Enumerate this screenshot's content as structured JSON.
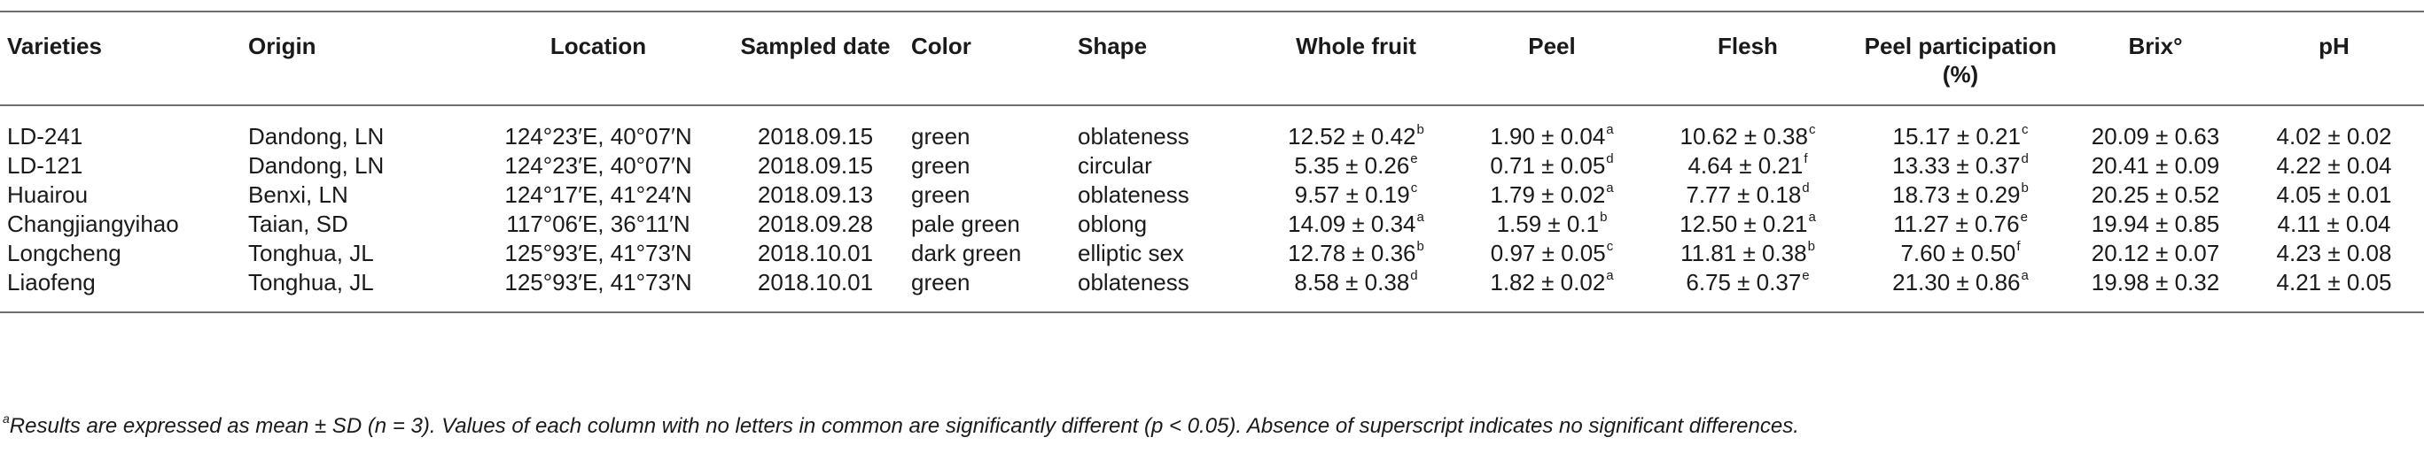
{
  "table": {
    "columns": [
      {
        "key": "variety",
        "label": "Varieties",
        "align": "l"
      },
      {
        "key": "origin",
        "label": "Origin",
        "align": "l"
      },
      {
        "key": "location",
        "label": "Location",
        "align": "c"
      },
      {
        "key": "sampled_date",
        "label": "Sampled date",
        "align": "c"
      },
      {
        "key": "color",
        "label": "Color",
        "align": "l"
      },
      {
        "key": "shape",
        "label": "Shape",
        "align": "l"
      },
      {
        "key": "whole_fruit",
        "label": "Whole fruit",
        "align": "c"
      },
      {
        "key": "peel",
        "label": "Peel",
        "align": "c"
      },
      {
        "key": "flesh",
        "label": "Flesh",
        "align": "c"
      },
      {
        "key": "peel_participation",
        "label": "Peel participation (%)",
        "align": "c"
      },
      {
        "key": "brix",
        "label": "Brix°",
        "align": "c"
      },
      {
        "key": "ph",
        "label": "pH",
        "align": "c"
      }
    ],
    "rows": [
      {
        "variety": "LD-241",
        "origin": "Dandong, LN",
        "location": "124°23′E, 40°07′N",
        "sampled_date": "2018.09.15",
        "color": "green",
        "shape": "oblateness",
        "whole_fruit": {
          "v": "12.52 ± 0.42",
          "s": "b"
        },
        "peel": {
          "v": "1.90 ± 0.04",
          "s": "a"
        },
        "flesh": {
          "v": "10.62 ± 0.38",
          "s": "c"
        },
        "peel_participation": {
          "v": "15.17 ± 0.21",
          "s": "c"
        },
        "brix": "20.09 ± 0.63",
        "ph": "4.02 ± 0.02"
      },
      {
        "variety": "LD-121",
        "origin": "Dandong, LN",
        "location": "124°23′E, 40°07′N",
        "sampled_date": "2018.09.15",
        "color": "green",
        "shape": "circular",
        "whole_fruit": {
          "v": "5.35 ± 0.26",
          "s": "e"
        },
        "peel": {
          "v": "0.71 ± 0.05",
          "s": "d"
        },
        "flesh": {
          "v": "4.64 ± 0.21",
          "s": "f"
        },
        "peel_participation": {
          "v": "13.33 ± 0.37",
          "s": "d"
        },
        "brix": "20.41 ± 0.09",
        "ph": "4.22 ± 0.04"
      },
      {
        "variety": "Huairou",
        "origin": "Benxi, LN",
        "location": "124°17′E, 41°24′N",
        "sampled_date": "2018.09.13",
        "color": "green",
        "shape": "oblateness",
        "whole_fruit": {
          "v": "9.57 ± 0.19",
          "s": "c"
        },
        "peel": {
          "v": "1.79 ± 0.02",
          "s": "a"
        },
        "flesh": {
          "v": "7.77 ± 0.18",
          "s": "d"
        },
        "peel_participation": {
          "v": "18.73 ± 0.29",
          "s": "b"
        },
        "brix": "20.25 ± 0.52",
        "ph": "4.05 ± 0.01"
      },
      {
        "variety": "Changjiangyihao",
        "origin": "Taian, SD",
        "location": "117°06′E, 36°11′N",
        "sampled_date": "2018.09.28",
        "color": "pale green",
        "shape": "oblong",
        "whole_fruit": {
          "v": "14.09 ± 0.34",
          "s": "a"
        },
        "peel": {
          "v": "1.59 ± 0.1",
          "s": "b"
        },
        "flesh": {
          "v": "12.50 ± 0.21",
          "s": "a"
        },
        "peel_participation": {
          "v": "11.27 ± 0.76",
          "s": "e"
        },
        "brix": "19.94 ± 0.85",
        "ph": "4.11 ± 0.04"
      },
      {
        "variety": "Longcheng",
        "origin": "Tonghua, JL",
        "location": "125°93′E, 41°73′N",
        "sampled_date": "2018.10.01",
        "color": "dark green",
        "shape": "elliptic sex",
        "whole_fruit": {
          "v": "12.78 ± 0.36",
          "s": "b"
        },
        "peel": {
          "v": "0.97 ± 0.05",
          "s": "c"
        },
        "flesh": {
          "v": "11.81 ± 0.38",
          "s": "b"
        },
        "peel_participation": {
          "v": "7.60 ± 0.50",
          "s": "f"
        },
        "brix": "20.12 ± 0.07",
        "ph": "4.23 ± 0.08"
      },
      {
        "variety": "Liaofeng",
        "origin": "Tonghua, JL",
        "location": "125°93′E, 41°73′N",
        "sampled_date": "2018.10.01",
        "color": "green",
        "shape": "oblateness",
        "whole_fruit": {
          "v": "8.58 ± 0.38",
          "s": "d"
        },
        "peel": {
          "v": "1.82 ± 0.02",
          "s": "a"
        },
        "flesh": {
          "v": "6.75 ± 0.37",
          "s": "e"
        },
        "peel_participation": {
          "v": "21.30 ± 0.86",
          "s": "a"
        },
        "brix": "19.98 ± 0.32",
        "ph": "4.21 ± 0.05"
      }
    ]
  },
  "footnote": {
    "marker": "a",
    "text": "Results are expressed as mean ± SD (n = 3). Values of each column with no letters in common are significantly different (p < 0.05). Absence of superscript indicates no significant differences."
  }
}
